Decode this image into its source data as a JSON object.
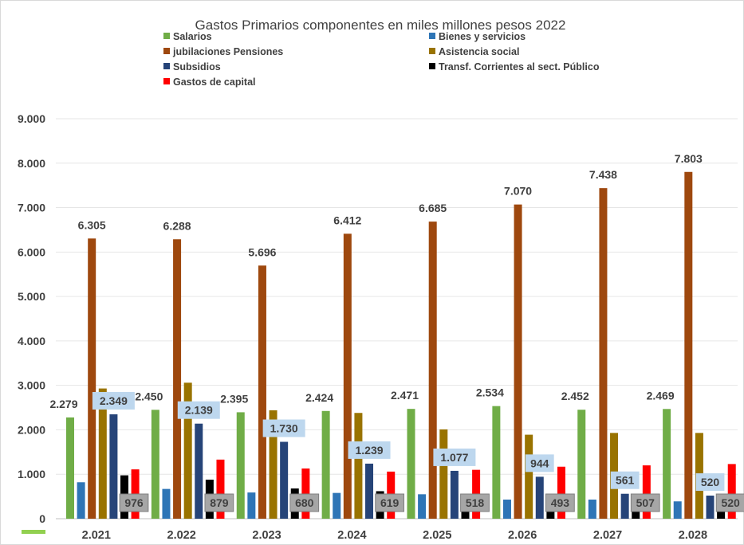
{
  "chart_data": {
    "type": "bar",
    "title": "Gastos Primarios componentes en miles millones pesos 2022",
    "xlabel": "",
    "ylabel": "",
    "ylim": [
      0,
      9000
    ],
    "y_ticks": [
      "0",
      "1.000",
      "2.000",
      "3.000",
      "4.000",
      "5.000",
      "6.000",
      "7.000",
      "8.000",
      "9.000"
    ],
    "categories": [
      "2.021",
      "2.022",
      "2.023",
      "2.024",
      "2.025",
      "2.026",
      "2.027",
      "2.028"
    ],
    "grid": true,
    "legend_position": "top",
    "series": [
      {
        "name": "Salarios",
        "color": "#70ad47",
        "values": [
          2279,
          2450,
          2395,
          2424,
          2471,
          2534,
          2452,
          2469
        ],
        "labels": [
          "2.279",
          "2.450",
          "2.395",
          "2.424",
          "2.471",
          "2.534",
          "2.452",
          "2.469"
        ]
      },
      {
        "name": "Bienes y servicios",
        "color": "#2e75b6",
        "values": [
          820,
          670,
          590,
          580,
          550,
          430,
          430,
          390
        ]
      },
      {
        "name": "jubilaciones Pensiones",
        "color": "#9e480e",
        "values": [
          6305,
          6288,
          5696,
          6412,
          6685,
          7070,
          7438,
          7803
        ],
        "labels": [
          "6.305",
          "6.288",
          "5.696",
          "6.412",
          "6.685",
          "7.070",
          "7.438",
          "7.803"
        ]
      },
      {
        "name": "Asistencia social",
        "color": "#997300",
        "values": [
          2930,
          3060,
          2440,
          2380,
          2010,
          1890,
          1930,
          1930
        ]
      },
      {
        "name": "Subsidios",
        "color": "#264478",
        "values": [
          2349,
          2139,
          1730,
          1239,
          1077,
          944,
          561,
          520
        ],
        "labels": [
          "2.349",
          "2.139",
          "1.730",
          "1.239",
          "1.077",
          "944",
          "561",
          "520"
        ]
      },
      {
        "name": "Transf. Corrientes al sect. Público",
        "color": "#000000",
        "values": [
          976,
          879,
          680,
          619,
          518,
          493,
          507,
          520
        ],
        "labels": [
          "976",
          "879",
          "680",
          "619",
          "518",
          "493",
          "507",
          "520"
        ]
      },
      {
        "name": "Gastos de capital",
        "color": "#ff0000",
        "values": [
          1110,
          1330,
          1130,
          1060,
          1100,
          1170,
          1200,
          1230
        ]
      }
    ],
    "extra_legend_line_color": "#92d050"
  }
}
